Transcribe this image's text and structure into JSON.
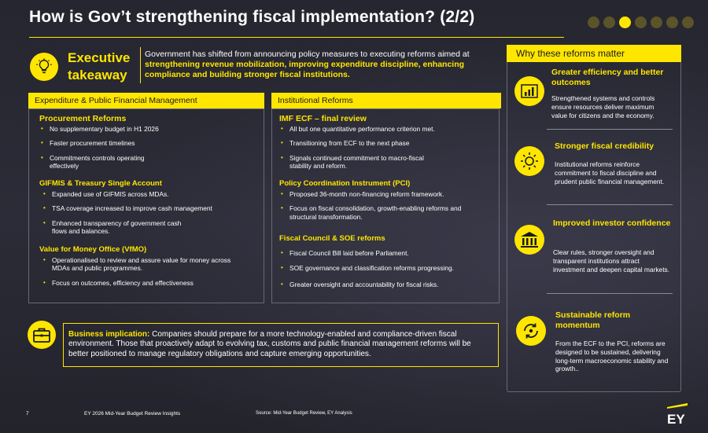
{
  "header": {
    "title": "How is Gov’t strengthening fiscal implementation? (2/2)",
    "pagination_dots": 7,
    "active_dot": 2
  },
  "executive": {
    "label_line1": "Executive",
    "label_line2": "takeaway",
    "text_plain": "Government has shifted from announcing policy measures to executing reforms aimed at ",
    "text_highlight": "strengthening revenue mobilization, improving expenditure discipline, enhancing compliance and building stronger fiscal institutions."
  },
  "left_panel": {
    "heading": "Expenditure & Public Financial Management",
    "sections": [
      {
        "title": "Procurement Reforms",
        "items": [
          "No supplementary budget in H1 2026",
          "Faster procurement timelines",
          "Commitments controls operating effectively"
        ]
      },
      {
        "title": "GIFMIS & Treasury Single Account",
        "items": [
          "Expanded use of GIFMIS across MDAs.",
          "TSA coverage increased to improve cash management",
          "Enhanced transparency of government cash flows and balances."
        ]
      },
      {
        "title": "Value for Money Office (VfMO)",
        "items": [
          "Operationalised to review and assure value for money across MDAs and public programmes.",
          "Focus on outcomes, efficiency and effectiveness"
        ]
      }
    ]
  },
  "middle_panel": {
    "heading": "Institutional Reforms",
    "sections": [
      {
        "title": "IMF ECF – final review",
        "items": [
          "All but one quantitative performance criterion met.",
          "Transitioning from ECF to the next phase",
          "Signals continued commitment to macro-fiscal stability and reform."
        ]
      },
      {
        "title": "Policy Coordination Instrument (PCI)",
        "items": [
          "Proposed 36-month non-financing reform framework.",
          "Focus on fiscal consolidation, growth-enabling reforms and structural transformation."
        ]
      },
      {
        "title": "Fiscal Council & SOE reforms",
        "items": [
          "Fiscal Council Bill laid before Parliament.",
          "SOE governance and classification reforms progressing.",
          "Greater oversight and accountability for fiscal risks."
        ]
      }
    ]
  },
  "why": {
    "heading": "Why these reforms matter",
    "items": [
      {
        "icon": "bar-chart-icon",
        "title": "Greater efficiency and better outcomes",
        "desc": "Strengthened systems and controls ensure resources deliver maximum value for citizens and the economy."
      },
      {
        "icon": "sun-icon",
        "title": "Stronger fiscal credibility",
        "desc": "Institutional reforms reinforce commitment to fiscal discipline and prudent public financial management."
      },
      {
        "icon": "bank-icon",
        "title": "Improved investor confidence",
        "desc": "Clear rules, stronger oversight and transparent institutions attract investment and deepen capital markets."
      },
      {
        "icon": "cycle-icon",
        "title": "Sustainable reform momentum",
        "desc": "From the ECF  to the PCI, reforms are designed to be sustained, delivering long-term macroeconomic stability and growth.."
      }
    ]
  },
  "business": {
    "label": "Business implication:",
    "text": " Companies should prepare for a more technology-enabled and compliance-driven fiscal environment. Those that proactively adapt to evolving tax, customs and public financial management reforms will be better positioned to manage regulatory obligations and capture emerging opportunities."
  },
  "footer": {
    "page_number": "7",
    "doc_title": "EY 2026 Mid-Year Budget Review  Insights",
    "source": "Source: Mid-Year Budget Review, EY Analysis",
    "logo_text": "EY"
  },
  "colors": {
    "accent": "#ffe600",
    "background": "#2a2a36"
  }
}
